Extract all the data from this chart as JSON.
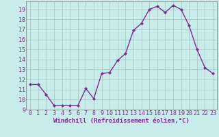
{
  "x": [
    0,
    1,
    2,
    3,
    4,
    5,
    6,
    7,
    8,
    9,
    10,
    11,
    12,
    13,
    14,
    15,
    16,
    17,
    18,
    19,
    20,
    21,
    22,
    23
  ],
  "y": [
    11.5,
    11.5,
    10.5,
    9.4,
    9.4,
    9.4,
    9.4,
    11.1,
    10.1,
    12.6,
    12.7,
    13.9,
    14.6,
    16.9,
    17.6,
    19.0,
    19.3,
    18.7,
    19.4,
    19.0,
    17.4,
    15.0,
    13.2,
    12.6
  ],
  "line_color": "#7b2d8b",
  "marker": "D",
  "marker_size": 2.0,
  "bg_color": "#c8ecec",
  "grid_color": "#adc8c8",
  "xlabel": "Windchill (Refroidissement éolien,°C)",
  "xlabel_fontsize": 6.5,
  "xlim": [
    -0.5,
    23.5
  ],
  "ylim": [
    9,
    19.8
  ],
  "yticks": [
    9,
    10,
    11,
    12,
    13,
    14,
    15,
    16,
    17,
    18,
    19
  ],
  "xticks": [
    0,
    1,
    2,
    3,
    4,
    5,
    6,
    7,
    8,
    9,
    10,
    11,
    12,
    13,
    14,
    15,
    16,
    17,
    18,
    19,
    20,
    21,
    22,
    23
  ],
  "tick_fontsize": 6.0,
  "line_width": 1.0
}
